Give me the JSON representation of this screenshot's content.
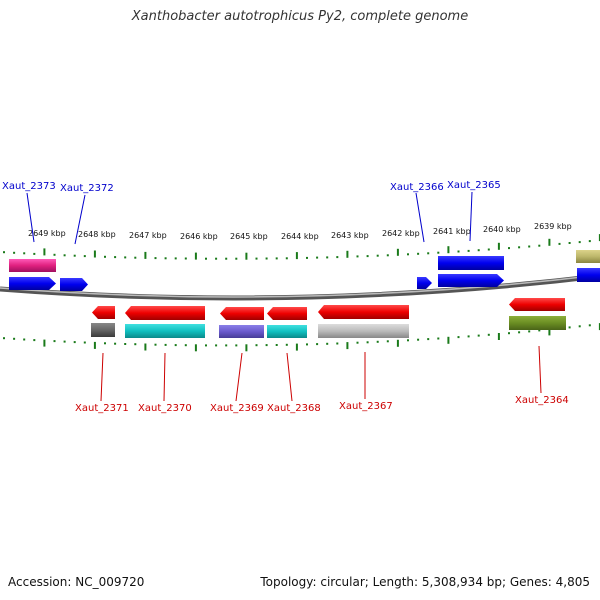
{
  "title": "Xanthobacter autotrophicus Py2, complete genome",
  "footer": {
    "accession": "Accession: NC_009720",
    "topology": "Topology: circular; Length: 5,308,934 bp; Genes: 4,805"
  },
  "colors": {
    "forward_label": "#0000cc",
    "reverse_label": "#cc0000",
    "tick": "#1a7a1a",
    "backbone": "#888888"
  },
  "kbp_labels": [
    "2649 kbp",
    "2648 kbp",
    "2647 kbp",
    "2646 kbp",
    "2645 kbp",
    "2644 kbp",
    "2643 kbp",
    "2642 kbp",
    "2641 kbp",
    "2640 kbp",
    "2639 kbp"
  ],
  "gene_labels": [
    {
      "text": "Xaut_2373",
      "strand": "forward"
    },
    {
      "text": "Xaut_2372",
      "strand": "forward"
    },
    {
      "text": "Xaut_2366",
      "strand": "forward"
    },
    {
      "text": "Xaut_2365",
      "strand": "forward"
    },
    {
      "text": "Xaut_2371",
      "strand": "reverse"
    },
    {
      "text": "Xaut_2370",
      "strand": "reverse"
    },
    {
      "text": "Xaut_2369",
      "strand": "reverse"
    },
    {
      "text": "Xaut_2368",
      "strand": "reverse"
    },
    {
      "text": "Xaut_2367",
      "strand": "reverse"
    },
    {
      "text": "Xaut_2364",
      "strand": "reverse"
    }
  ]
}
